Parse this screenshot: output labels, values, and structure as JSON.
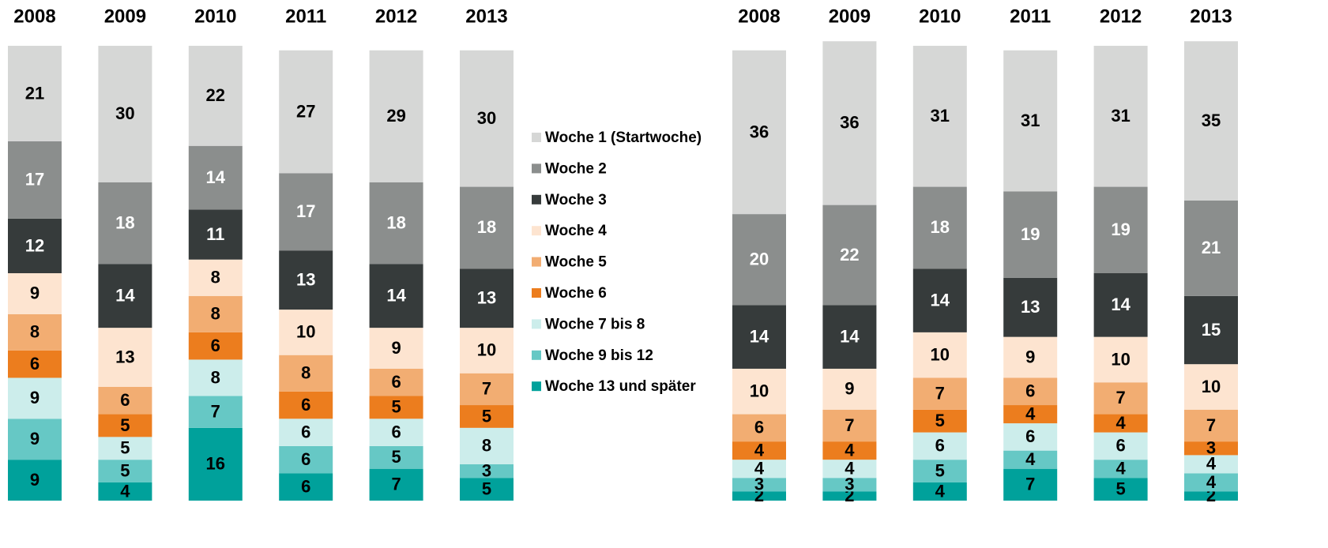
{
  "chart_data": [
    {
      "type": "bar",
      "stacked": true,
      "categories": [
        "2008",
        "2009",
        "2010",
        "2011",
        "2012",
        "2013"
      ],
      "ylim": [
        0,
        100
      ],
      "series": [
        {
          "name": "Woche 1 (Startwoche)",
          "color": "#d6d7d6",
          "values": [
            21,
            30,
            22,
            27,
            29,
            30
          ]
        },
        {
          "name": "Woche 2",
          "color": "#8b8e8d",
          "values": [
            17,
            18,
            14,
            17,
            18,
            18
          ]
        },
        {
          "name": "Woche 3",
          "color": "#363b3b",
          "values": [
            12,
            14,
            11,
            13,
            14,
            13
          ]
        },
        {
          "name": "Woche 4",
          "color": "#fde4d0",
          "values": [
            9,
            13,
            8,
            10,
            9,
            10
          ]
        },
        {
          "name": "Woche 5",
          "color": "#f2ad72",
          "values": [
            8,
            6,
            8,
            8,
            6,
            7
          ]
        },
        {
          "name": "Woche 6",
          "color": "#ec7d1e",
          "values": [
            6,
            5,
            6,
            6,
            5,
            5
          ]
        },
        {
          "name": "Woche 7 bis 8",
          "color": "#ccedeb",
          "values": [
            9,
            5,
            8,
            6,
            6,
            8
          ]
        },
        {
          "name": "Woche 9 bis 12",
          "color": "#66c8c5",
          "values": [
            9,
            5,
            7,
            6,
            5,
            3
          ]
        },
        {
          "name": "Woche 13 und später",
          "color": "#00a19b",
          "values": [
            9,
            4,
            16,
            6,
            7,
            5
          ]
        }
      ]
    },
    {
      "type": "bar",
      "stacked": true,
      "categories": [
        "2008",
        "2009",
        "2010",
        "2011",
        "2012",
        "2013"
      ],
      "ylim": [
        0,
        100
      ],
      "series": [
        {
          "color": "#d6d7d6",
          "values": [
            36,
            36,
            31,
            31,
            31,
            35
          ]
        },
        {
          "color": "#8b8e8d",
          "values": [
            20,
            22,
            18,
            19,
            19,
            21
          ]
        },
        {
          "color": "#363b3b",
          "values": [
            14,
            14,
            14,
            13,
            14,
            15
          ]
        },
        {
          "color": "#fde4d0",
          "values": [
            10,
            9,
            10,
            9,
            10,
            10
          ]
        },
        {
          "color": "#f2ad72",
          "values": [
            6,
            7,
            7,
            6,
            7,
            7
          ]
        },
        {
          "color": "#ec7d1e",
          "values": [
            4,
            4,
            5,
            4,
            4,
            3
          ]
        },
        {
          "color": "#ccedeb",
          "values": [
            4,
            4,
            6,
            6,
            6,
            4
          ]
        },
        {
          "color": "#66c8c5",
          "values": [
            3,
            3,
            5,
            4,
            4,
            4
          ]
        },
        {
          "color": "#00a19b",
          "values": [
            2,
            2,
            4,
            7,
            5,
            2
          ]
        }
      ]
    }
  ]
}
